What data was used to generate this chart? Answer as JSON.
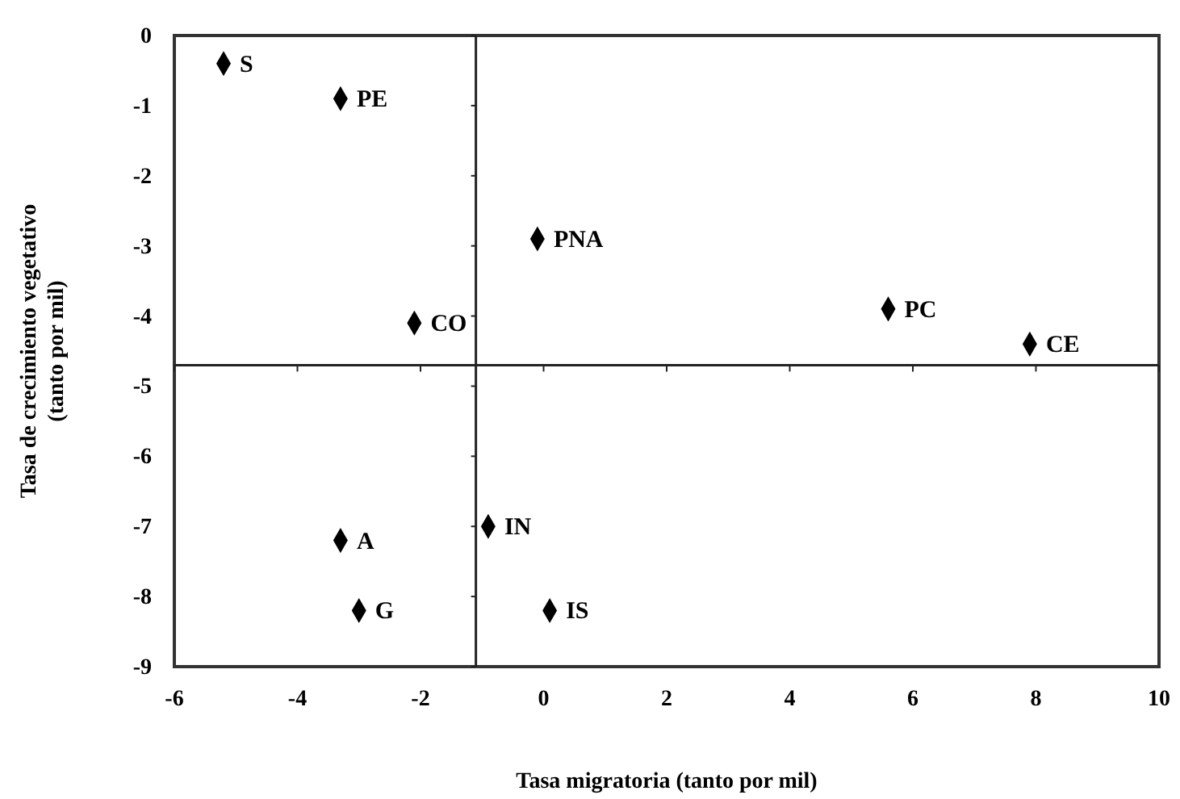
{
  "chart_data": {
    "type": "scatter",
    "xlabel": "Tasa migratoria (tanto por mil)",
    "ylabel": "Tasa de crecimiento vegetativo\n(tanto por mil)",
    "x": [
      -5.2,
      -3.3,
      -0.1,
      -2.1,
      5.6,
      7.9,
      -3.3,
      -3.0,
      -0.9,
      0.1
    ],
    "values": [
      -0.4,
      -0.9,
      -2.9,
      -4.1,
      -3.9,
      -4.4,
      -7.2,
      -8.2,
      -7.0,
      -8.2
    ],
    "color": "#000000",
    "marker": "diamond",
    "xlim": [
      -6,
      10
    ],
    "xticks": [
      -6,
      -4,
      -2,
      0,
      2,
      4,
      6,
      8,
      10
    ],
    "ylim": [
      -9,
      0
    ],
    "yticks": [
      0,
      -1,
      -2,
      -3,
      -4,
      -5,
      -6,
      -7,
      -8,
      -9
    ],
    "grid": false,
    "ref_lines": [
      {
        "axis": "x",
        "value": -1.1
      },
      {
        "axis": "y",
        "value": -4.7
      }
    ],
    "annotations": [
      {
        "text": "S",
        "x": -5.2,
        "y": -0.4
      },
      {
        "text": "PE",
        "x": -3.3,
        "y": -0.9
      },
      {
        "text": "PNA",
        "x": -0.1,
        "y": -2.9
      },
      {
        "text": "CO",
        "x": -2.1,
        "y": -4.1
      },
      {
        "text": "PC",
        "x": 5.6,
        "y": -3.9
      },
      {
        "text": "CE",
        "x": 7.9,
        "y": -4.4
      },
      {
        "text": "A",
        "x": -3.3,
        "y": -7.2
      },
      {
        "text": "G",
        "x": -3.0,
        "y": -8.2
      },
      {
        "text": "IN",
        "x": -0.9,
        "y": -7.0
      },
      {
        "text": "IS",
        "x": 0.1,
        "y": -8.2
      }
    ]
  }
}
